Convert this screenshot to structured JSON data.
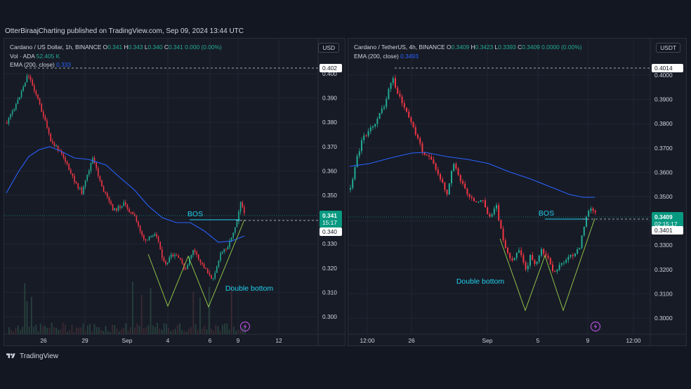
{
  "header": {
    "published": "OtterBiraajCharting published on TradingView.com, Sep 09, 2024 13:44 UTC"
  },
  "footer": {
    "brand": "TradingView"
  },
  "colors": {
    "background": "#131722",
    "panel": "#171b26",
    "grid": "#222633",
    "up": "#22ab94",
    "down": "#f23645",
    "ema": "#2962ff",
    "annotation": "#22d1ee",
    "pattern_line": "#9ad14b",
    "price_badge": "#089981",
    "text": "#d1d4dc"
  },
  "charts": [
    {
      "legend": {
        "symbol": "Cardano / US Dollar, 1h, BINANCE",
        "o_label": "O",
        "o": "0.341",
        "h_label": "H",
        "h": "0.343",
        "l_label": "L",
        "l": "0.340",
        "c_label": "C",
        "c": "0.341",
        "change": "0.000 (0.00%)",
        "vol_label": "Vol · ADA",
        "vol": "52.405 K",
        "ema_label": "EMA (200, close)",
        "ema": "0.333"
      },
      "currency": "USD",
      "y_ticks": [
        "0.400",
        "0.390",
        "0.380",
        "0.370",
        "0.360",
        "0.350",
        "0.340",
        "0.330",
        "0.320",
        "0.310",
        "0.300"
      ],
      "x_ticks": [
        "26",
        "29",
        "Sep",
        "4",
        "6",
        "9",
        "12"
      ],
      "labels": {
        "high": "0.402",
        "price": "0.341",
        "countdown": "15:17",
        "level": "0.340",
        "bos": "BOS",
        "pattern": "Double bottom"
      }
    },
    {
      "legend": {
        "symbol": "Cardano / TetherUS, 4h, BINANCE",
        "o_label": "O",
        "o": "0.3409",
        "h_label": "H",
        "h": "0.3423",
        "l_label": "L",
        "l": "0.3393",
        "c_label": "C",
        "c": "0.3409",
        "change": "0.0000 (0.00%)",
        "vol_label": "",
        "vol": "",
        "ema_label": "EMA (200, close)",
        "ema": "0.3493"
      },
      "currency": "USDT",
      "y_ticks": [
        "0.4000",
        "0.3900",
        "0.3800",
        "0.3700",
        "0.3600",
        "0.3500",
        "0.3400",
        "0.3300",
        "0.3200",
        "0.3100",
        "0.3000"
      ],
      "x_ticks": [
        "12:00",
        "26",
        "Sep",
        "5",
        "9",
        "12:00"
      ],
      "labels": {
        "high": "0.4014",
        "price": "0.3409",
        "countdown": "02:15:17",
        "level": "0.3401",
        "bos": "BOS",
        "pattern": "Double bottom"
      }
    }
  ]
}
